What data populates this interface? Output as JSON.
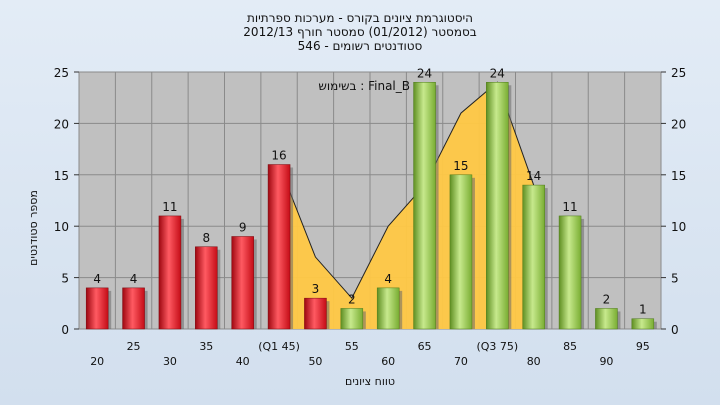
{
  "chart_data": {
    "type": "bar",
    "title_lines": [
      "היסטוגרמת ציונים בקורס - מערכות ספרתיות",
      "בסמסטר  (01/2012)  סמסטר חורף 2012/13",
      "סטודנטים רשומים - 546"
    ],
    "annotation": "בשימוש : Final_B",
    "ylabel": "מספר סטודנטים",
    "xlabel": "טווח ציונים",
    "ylim": [
      0,
      25
    ],
    "yticks": [
      0,
      5,
      10,
      15,
      20,
      25
    ],
    "grid": true,
    "categories": [
      "20",
      "25",
      "30",
      "35",
      "40",
      "(Q1 45)",
      "50",
      "55",
      "60",
      "65",
      "70",
      "(Q3 75)",
      "80",
      "85",
      "90",
      "95"
    ],
    "values": [
      4,
      4,
      11,
      8,
      9,
      16,
      3,
      2,
      4,
      24,
      15,
      24,
      14,
      11,
      2,
      1
    ],
    "bar_colors": [
      "#e8121e",
      "#e8121e",
      "#e8121e",
      "#e8121e",
      "#e8121e",
      "#e8121e",
      "#e8121e",
      "#8cc63f",
      "#8cc63f",
      "#8cc63f",
      "#8cc63f",
      "#8cc63f",
      "#8cc63f",
      "#8cc63f",
      "#8cc63f",
      "#8cc63f"
    ],
    "area": {
      "color": "#ffc844",
      "from_index": 5,
      "to_index": 12,
      "values": [
        16,
        7,
        3,
        10,
        14,
        21,
        24,
        14
      ]
    },
    "colors": {
      "plot_bg": "#c0c0c0",
      "page_bg": "#d9e4f1",
      "red_bar": "#e8121e",
      "green_bar": "#8cc63f",
      "area_fill": "#ffc844"
    }
  }
}
